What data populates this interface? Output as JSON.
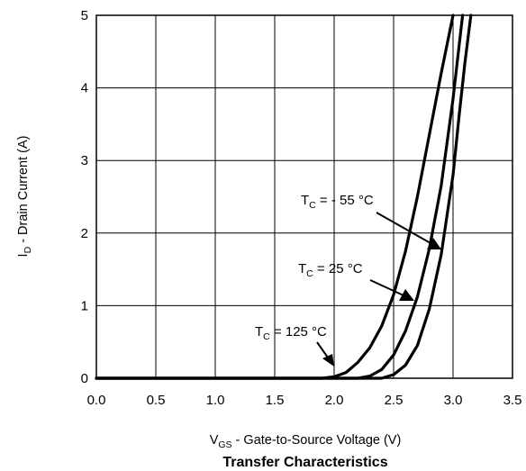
{
  "chart_data": {
    "type": "line",
    "title": "Transfer Characteristics",
    "xlabel": {
      "main": "V",
      "sub": "GS",
      "rest": " - Gate-to-Source Voltage (V)"
    },
    "ylabel": {
      "main": "I",
      "sub": "D",
      "rest": " - Drain Current (A)"
    },
    "xlim": [
      0,
      3.5
    ],
    "ylim": [
      0,
      5
    ],
    "grid": true,
    "x_ticks": [
      "0.0",
      "0.5",
      "1.0",
      "1.5",
      "2.0",
      "2.5",
      "3.0",
      "3.5"
    ],
    "y_ticks": [
      "0",
      "1",
      "2",
      "3",
      "4",
      "5"
    ],
    "series": [
      {
        "name": "TC = 125 °C",
        "x": [
          0,
          1.9,
          2.0,
          2.1,
          2.2,
          2.3,
          2.4,
          2.5,
          2.6,
          2.7,
          2.8,
          2.9,
          3.0
        ],
        "y": [
          0,
          0,
          0.02,
          0.08,
          0.22,
          0.42,
          0.72,
          1.15,
          1.75,
          2.5,
          3.35,
          4.2,
          5.0
        ]
      },
      {
        "name": "TC = 25 °C",
        "x": [
          0,
          2.2,
          2.3,
          2.4,
          2.5,
          2.6,
          2.7,
          2.8,
          2.9,
          3.0,
          3.08
        ],
        "y": [
          0,
          0,
          0.03,
          0.12,
          0.32,
          0.65,
          1.12,
          1.78,
          2.65,
          3.85,
          5.0
        ]
      },
      {
        "name": "TC = - 55 °C",
        "x": [
          0,
          2.4,
          2.5,
          2.6,
          2.7,
          2.8,
          2.9,
          3.0,
          3.05,
          3.1,
          3.15
        ],
        "y": [
          0,
          0,
          0.05,
          0.18,
          0.45,
          0.95,
          1.7,
          2.8,
          3.6,
          4.35,
          5.0
        ]
      }
    ],
    "annotations": [
      {
        "main": "T",
        "sub": "C",
        "rest": " = - 55 °C",
        "series": "TC = - 55 °C"
      },
      {
        "main": "T",
        "sub": "C",
        "rest": " = 25 °C",
        "series": "TC = 25 °C"
      },
      {
        "main": "T",
        "sub": "C",
        "rest": " = 125 °C",
        "series": "TC = 125 °C"
      }
    ]
  }
}
